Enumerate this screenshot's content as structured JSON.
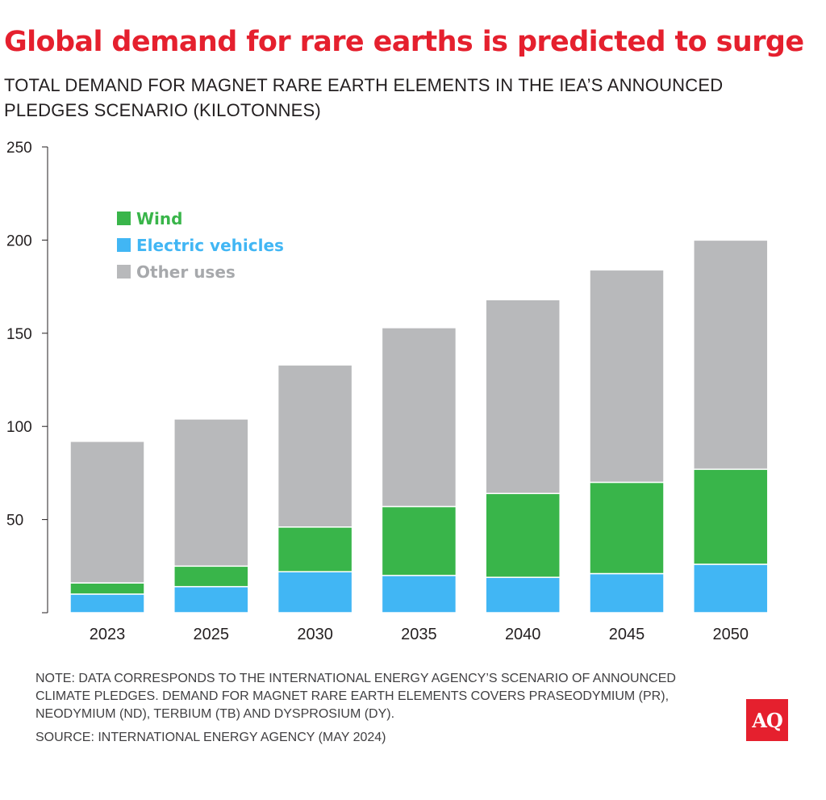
{
  "header": {
    "title": "Global demand for rare earths is predicted to surge",
    "subtitle": "TOTAL DEMAND FOR MAGNET RARE EARTH ELEMENTS IN THE IEA’S ANNOUNCED PLEDGES SCENARIO (KILOTONNES)"
  },
  "footer": {
    "note": "NOTE: DATA CORRESPONDS TO THE INTERNATIONAL ENERGY AGENCY’S SCENARIO OF ANNOUNCED CLIMATE PLEDGES. DEMAND FOR MAGNET RARE EARTH ELEMENTS COVERS PRASEODYMIUM (PR), NEODYMIUM (ND), TERBIUM (TB) AND DYSPROSIUM (DY).",
    "source": "SOURCE: INTERNATIONAL ENERGY AGENCY (MAY 2024)",
    "logo": "AQ"
  },
  "chart_data": {
    "type": "bar",
    "stacked": true,
    "categories": [
      "2023",
      "2025",
      "2030",
      "2035",
      "2040",
      "2045",
      "2050"
    ],
    "series": [
      {
        "name": "Electric vehicles",
        "color": "#41b6f4",
        "values": [
          10,
          14,
          22,
          20,
          19,
          21,
          26
        ]
      },
      {
        "name": "Wind",
        "color": "#39b54a",
        "values": [
          6,
          11,
          24,
          37,
          45,
          49,
          51
        ]
      },
      {
        "name": "Other uses",
        "color": "#b8b9bb",
        "values": [
          76,
          79,
          87,
          96,
          104,
          114,
          123
        ]
      }
    ],
    "legend_order": [
      "Wind",
      "Electric vehicles",
      "Other uses"
    ],
    "legend_position": "top-left",
    "ylim": [
      0,
      250
    ],
    "yticks": [
      50,
      100,
      150,
      200,
      250
    ],
    "grid": false
  }
}
